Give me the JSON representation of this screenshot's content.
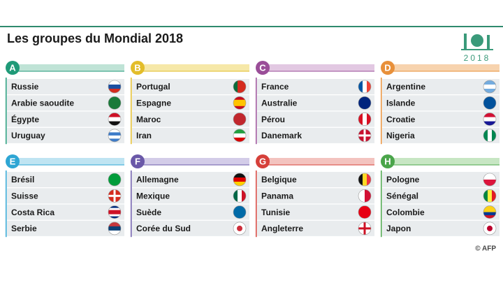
{
  "header": {
    "title": "Les groupes du Mondial 2018",
    "logo_text": "2018"
  },
  "groups": [
    {
      "letter": "A",
      "teams": [
        "Russie",
        "Arabie saoudite",
        "Égypte",
        "Uruguay"
      ]
    },
    {
      "letter": "B",
      "teams": [
        "Portugal",
        "Espagne",
        "Maroc",
        "Iran"
      ]
    },
    {
      "letter": "C",
      "teams": [
        "France",
        "Australie",
        "Pérou",
        "Danemark"
      ]
    },
    {
      "letter": "D",
      "teams": [
        "Argentine",
        "Islande",
        "Croatie",
        "Nigeria"
      ]
    },
    {
      "letter": "E",
      "teams": [
        "Brésil",
        "Suisse",
        "Costa Rica",
        "Serbie"
      ]
    },
    {
      "letter": "F",
      "teams": [
        "Allemagne",
        "Mexique",
        "Suède",
        "Corée du Sud"
      ]
    },
    {
      "letter": "G",
      "teams": [
        "Belgique",
        "Panama",
        "Tunisie",
        "Angleterre"
      ]
    },
    {
      "letter": "H",
      "teams": [
        "Pologne",
        "Sénégal",
        "Colombie",
        "Japon"
      ]
    }
  ],
  "footer": {
    "credit": "© AFP"
  }
}
